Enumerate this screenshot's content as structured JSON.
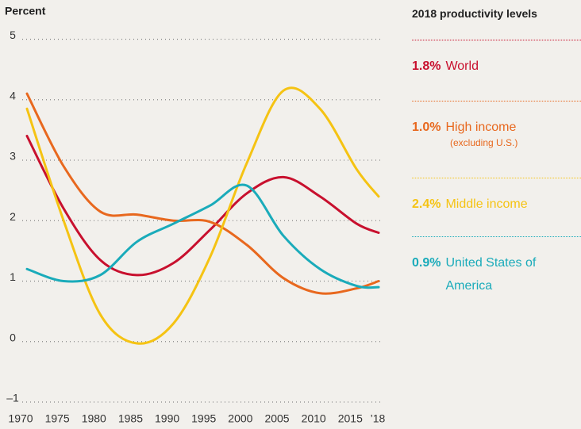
{
  "chart_data": {
    "type": "line",
    "y_label": "Percent",
    "x": [
      1970,
      1975,
      1980,
      1985,
      1990,
      1995,
      2000,
      2005,
      2010,
      2015,
      2018
    ],
    "xlim": [
      1970,
      2018
    ],
    "xticks": [
      1970,
      1975,
      1980,
      1985,
      1990,
      1995,
      2000,
      2005,
      2010,
      2015,
      {
        "value": 2018,
        "label": "’18"
      }
    ],
    "ylim": [
      -1,
      5
    ],
    "yticks": [
      {
        "value": -1,
        "label": "–1"
      },
      0,
      1,
      2,
      3,
      4,
      5
    ],
    "grid": true,
    "legend_title": "2018 productivity levels",
    "series": [
      {
        "name": "World",
        "color": "#c8102e",
        "values": [
          3.4,
          2.2,
          1.35,
          1.1,
          1.3,
          1.85,
          2.45,
          2.72,
          2.4,
          1.95,
          1.8
        ],
        "value_labels": [
          null,
          null,
          null,
          null,
          null,
          null,
          null,
          null,
          null,
          null,
          "1.8%"
        ]
      },
      {
        "name": "High income",
        "note": "(excluding U.S.)",
        "color": "#e8681e",
        "values": [
          4.1,
          2.9,
          2.15,
          2.1,
          2.0,
          1.98,
          1.6,
          1.05,
          0.8,
          0.88,
          1.0
        ],
        "value_labels": [
          null,
          null,
          null,
          null,
          null,
          null,
          null,
          null,
          null,
          null,
          "1.0%"
        ]
      },
      {
        "name": "Middle income",
        "color": "#f5c313",
        "values": [
          3.85,
          2.0,
          0.45,
          -0.03,
          0.3,
          1.4,
          2.95,
          4.15,
          3.85,
          2.85,
          2.4
        ],
        "value_labels": [
          null,
          null,
          null,
          null,
          null,
          null,
          null,
          null,
          null,
          null,
          "2.4%"
        ]
      },
      {
        "name": "United States of America",
        "color": "#1aabba",
        "values": [
          1.2,
          1.0,
          1.1,
          1.65,
          1.95,
          2.25,
          2.58,
          1.75,
          1.2,
          0.92,
          0.9
        ],
        "value_labels": [
          null,
          null,
          null,
          null,
          null,
          null,
          null,
          null,
          null,
          null,
          "0.9%"
        ]
      }
    ]
  }
}
